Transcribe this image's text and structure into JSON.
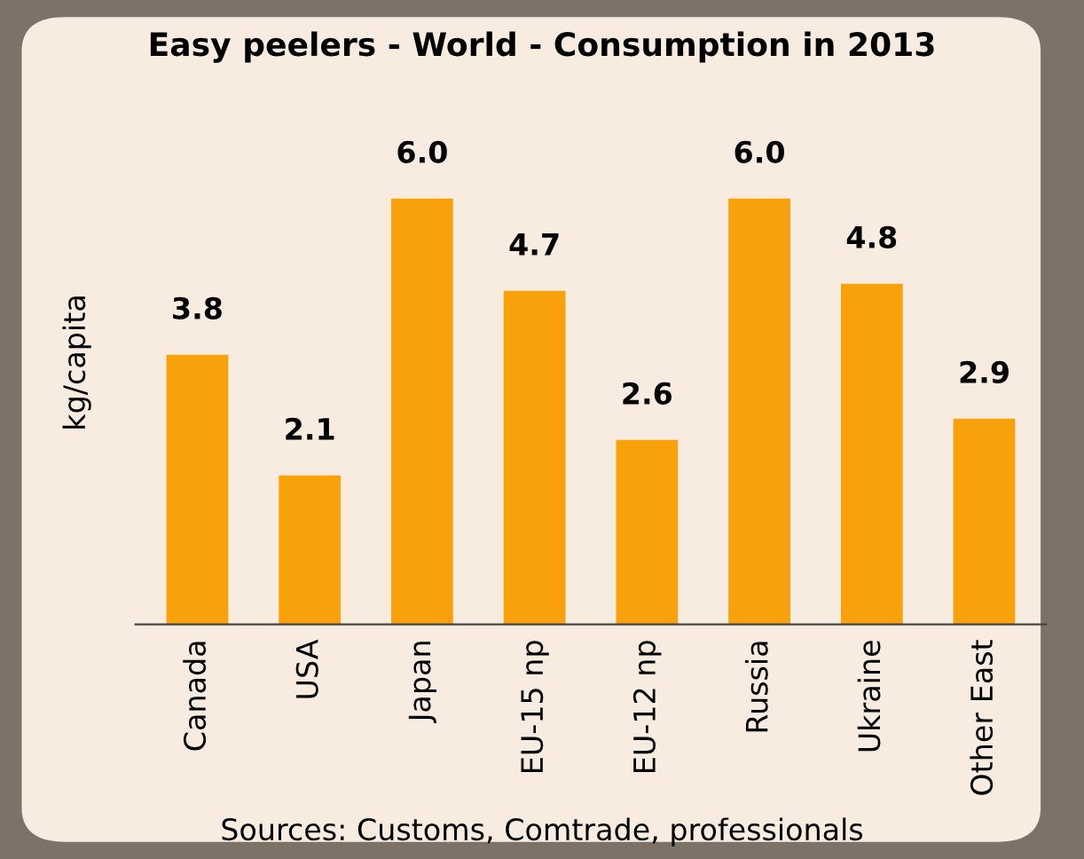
{
  "chart_data": {
    "type": "bar",
    "title": "Easy peelers - World - Consumption in 2013",
    "ylabel": "kg/capita",
    "categories": [
      "Canada",
      "USA",
      "Japan",
      "EU-15 np",
      "EU-12 np",
      "Russia",
      "Ukraine",
      "Other East"
    ],
    "values": [
      3.8,
      2.1,
      6.0,
      4.7,
      2.6,
      6.0,
      4.8,
      2.9
    ],
    "value_labels": [
      "3.8",
      "2.1",
      "6.0",
      "4.7",
      "2.6",
      "6.0",
      "4.8",
      "2.9"
    ],
    "color": "#f9a10a",
    "annotations": [
      "Sources: Customs, Comtrade, professionals"
    ]
  }
}
